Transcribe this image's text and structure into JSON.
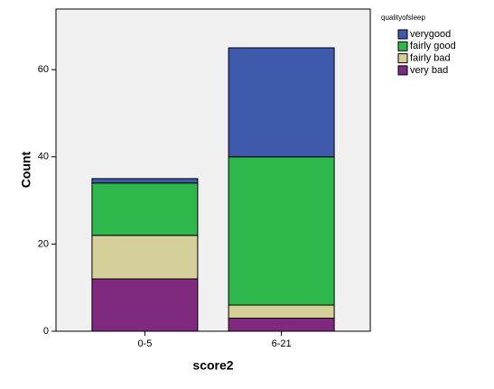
{
  "chart_data": {
    "type": "stacked-bar",
    "x_label": "score2",
    "y_label": "Count",
    "legend_title": "qualityofsleep",
    "categories": [
      "0-5",
      "6-21"
    ],
    "series": [
      {
        "name": "very bad",
        "color": "#7f2a7e",
        "values": [
          12,
          3
        ]
      },
      {
        "name": "fairly bad",
        "color": "#d5d09a",
        "values": [
          10,
          3
        ]
      },
      {
        "name": "fairly good",
        "color": "#2eb84b",
        "values": [
          12,
          34
        ]
      },
      {
        "name": "verygood",
        "color": "#3f59ad",
        "values": [
          1,
          25
        ]
      }
    ],
    "ylim": [
      0,
      73.9
    ],
    "yticks": [
      0,
      20,
      40,
      60
    ],
    "legend": "right"
  }
}
